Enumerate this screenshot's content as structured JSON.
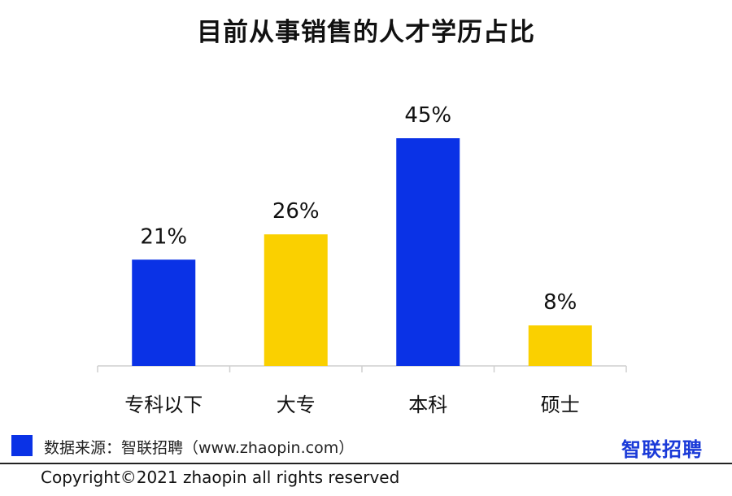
{
  "title": "目前从事销售的人才学历占比",
  "chart_data": {
    "type": "bar",
    "title": "目前从事销售的人才学历占比",
    "categories": [
      "专科以下",
      "大专",
      "本科",
      "硕士"
    ],
    "values": [
      21,
      26,
      45,
      8
    ],
    "value_labels": [
      "21%",
      "26%",
      "45%",
      "8%"
    ],
    "bar_colors": [
      "#0a32e6",
      "#fad000",
      "#0a32e6",
      "#fad000"
    ],
    "ylim": [
      0,
      50
    ],
    "grid": false,
    "xlabel": "",
    "ylabel": ""
  },
  "source": "数据来源：智联招聘（www.zhaopin.com）",
  "logo": "智联招聘",
  "copyright": "Copyright©2021 zhaopin all rights reserved",
  "colors": {
    "blue": "#0a32e6",
    "yellow": "#fad000"
  }
}
